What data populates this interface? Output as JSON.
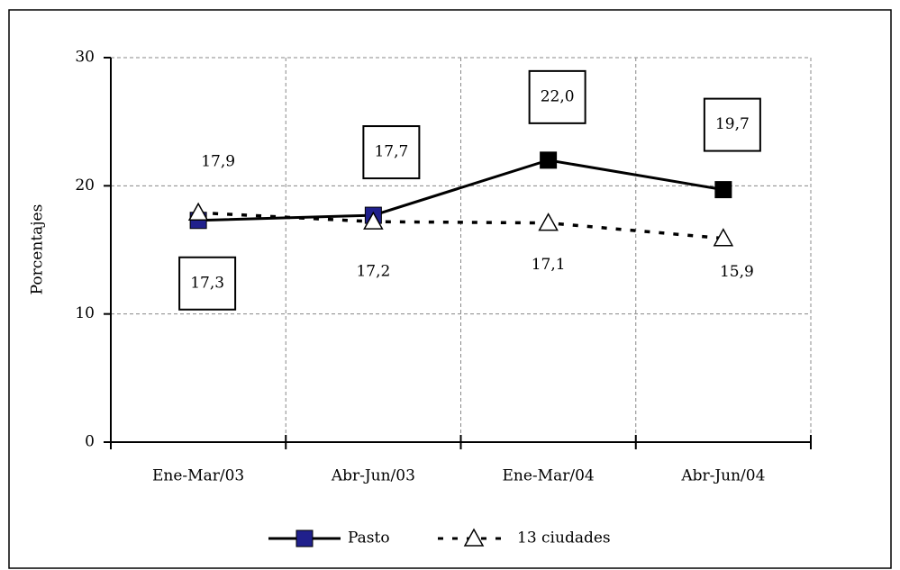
{
  "chart_data": {
    "type": "line",
    "y_label": "Porcentajes",
    "categories": [
      "Ene-Mar/03",
      "Abr-Jun/03",
      "Ene-Mar/04",
      "Abr-Jun/04"
    ],
    "series": [
      {
        "name": "Pasto",
        "color": "#000000",
        "marker": "square",
        "line": "solid",
        "marker_colors": [
          "#20208c",
          "#20208c",
          "#000000",
          "#000000"
        ],
        "values": [
          17.3,
          17.7,
          22.0,
          19.7
        ],
        "value_labels": [
          "17,3",
          "17,7",
          "22,0",
          "19,7"
        ]
      },
      {
        "name": "13 ciudades",
        "color": "#000000",
        "marker": "triangle",
        "line": "dotted",
        "values": [
          17.9,
          17.2,
          17.1,
          15.9
        ],
        "value_labels": [
          "17,9",
          "17,2",
          "17,1",
          "15,9"
        ]
      }
    ],
    "ylim": [
      0,
      30
    ],
    "yticks": [
      0,
      10,
      20,
      30
    ],
    "grid": true,
    "legend": "bottom"
  }
}
